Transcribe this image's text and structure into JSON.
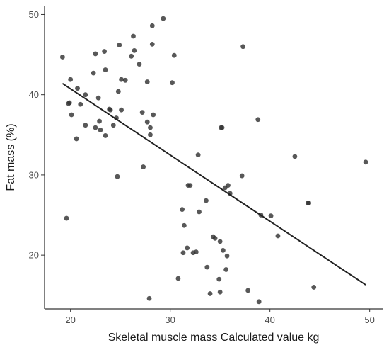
{
  "chart_data": {
    "type": "scatter",
    "xlabel": "Skeletal muscle mass Calculated value kg",
    "ylabel": "Fat mass (%)",
    "xlim": [
      17.4,
      51.3
    ],
    "ylim": [
      13.3,
      51.1
    ],
    "xticks": [
      20,
      30,
      40,
      50
    ],
    "yticks": [
      20,
      30,
      40,
      50
    ],
    "grid": false,
    "legend": "none",
    "colors": {
      "points": "#333333",
      "fit_line": "#222222",
      "axis": "#000000"
    },
    "trendline": {
      "x": [
        19.2,
        49.6
      ],
      "y": [
        41.4,
        16.3
      ]
    },
    "series": [
      {
        "points": [
          [
            19.2,
            44.7
          ],
          [
            19.6,
            24.6
          ],
          [
            19.8,
            38.9
          ],
          [
            19.9,
            39.0
          ],
          [
            20.0,
            41.9
          ],
          [
            20.1,
            37.5
          ],
          [
            20.6,
            34.5
          ],
          [
            20.7,
            40.8
          ],
          [
            21.0,
            38.8
          ],
          [
            21.5,
            40.0
          ],
          [
            21.5,
            36.2
          ],
          [
            22.3,
            42.7
          ],
          [
            22.5,
            45.1
          ],
          [
            22.5,
            35.9
          ],
          [
            22.8,
            39.6
          ],
          [
            22.9,
            36.7
          ],
          [
            23.0,
            35.6
          ],
          [
            23.4,
            45.4
          ],
          [
            23.5,
            43.1
          ],
          [
            23.5,
            34.9
          ],
          [
            23.9,
            38.2
          ],
          [
            24.0,
            38.1
          ],
          [
            24.3,
            36.2
          ],
          [
            24.6,
            37.1
          ],
          [
            24.7,
            29.8
          ],
          [
            24.8,
            40.4
          ],
          [
            24.9,
            46.2
          ],
          [
            25.1,
            41.9
          ],
          [
            25.1,
            38.1
          ],
          [
            25.5,
            41.8
          ],
          [
            26.1,
            44.8
          ],
          [
            26.3,
            47.3
          ],
          [
            26.4,
            45.5
          ],
          [
            26.9,
            43.8
          ],
          [
            27.2,
            37.8
          ],
          [
            27.3,
            31.0
          ],
          [
            27.7,
            41.6
          ],
          [
            27.7,
            36.6
          ],
          [
            27.9,
            14.6
          ],
          [
            28.0,
            35.9
          ],
          [
            28.0,
            35.0
          ],
          [
            28.2,
            48.6
          ],
          [
            28.2,
            46.3
          ],
          [
            28.3,
            37.5
          ],
          [
            29.3,
            49.5
          ],
          [
            30.2,
            41.5
          ],
          [
            30.4,
            44.9
          ],
          [
            30.8,
            17.1
          ],
          [
            31.2,
            25.7
          ],
          [
            31.3,
            20.3
          ],
          [
            31.4,
            23.7
          ],
          [
            31.7,
            20.9
          ],
          [
            31.8,
            28.7
          ],
          [
            32.0,
            28.7
          ],
          [
            32.3,
            20.3
          ],
          [
            32.6,
            20.4
          ],
          [
            32.8,
            32.5
          ],
          [
            32.9,
            25.4
          ],
          [
            33.6,
            26.8
          ],
          [
            33.7,
            18.5
          ],
          [
            34.0,
            15.2
          ],
          [
            34.3,
            22.3
          ],
          [
            34.5,
            22.1
          ],
          [
            34.9,
            17.0
          ],
          [
            35.0,
            21.7
          ],
          [
            35.0,
            15.4
          ],
          [
            35.1,
            35.9
          ],
          [
            35.2,
            35.9
          ],
          [
            35.3,
            20.6
          ],
          [
            35.5,
            28.4
          ],
          [
            35.6,
            18.2
          ],
          [
            35.7,
            19.9
          ],
          [
            35.8,
            28.7
          ],
          [
            36.0,
            27.7
          ],
          [
            37.2,
            29.9
          ],
          [
            37.3,
            46.0
          ],
          [
            37.8,
            15.6
          ],
          [
            38.8,
            36.9
          ],
          [
            38.9,
            14.2
          ],
          [
            39.1,
            25.0
          ],
          [
            40.1,
            24.9
          ],
          [
            40.8,
            22.4
          ],
          [
            42.5,
            32.3
          ],
          [
            43.8,
            26.5
          ],
          [
            43.9,
            26.5
          ],
          [
            44.4,
            16.0
          ],
          [
            49.6,
            31.6
          ]
        ]
      }
    ]
  }
}
